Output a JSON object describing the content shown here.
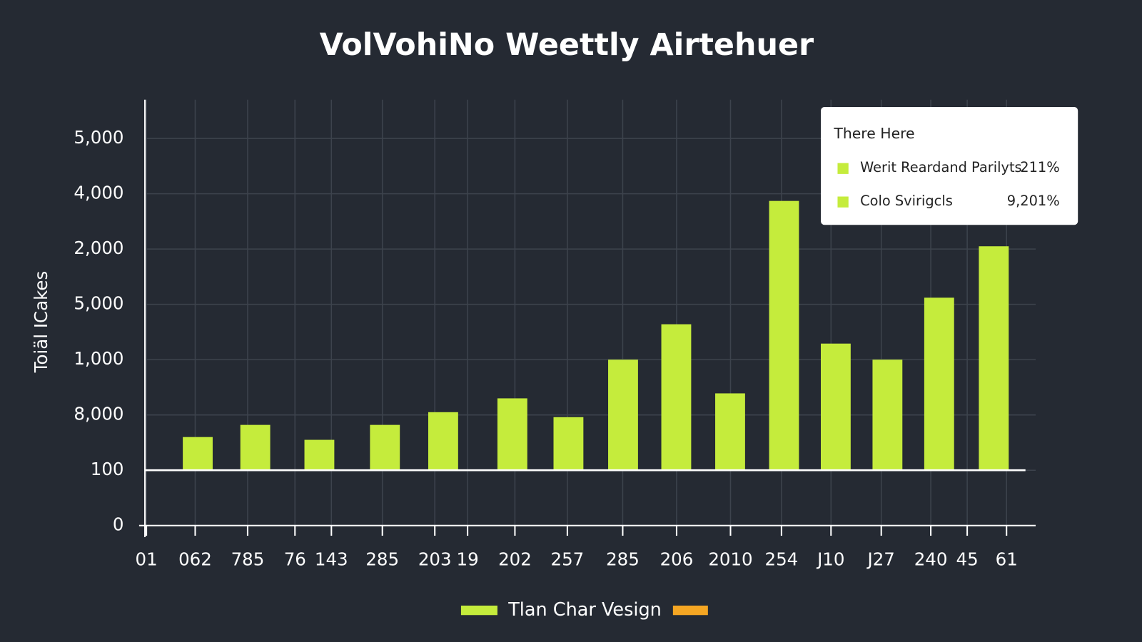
{
  "chart_data": {
    "type": "bar",
    "title": "VolVohiNo Weettly Airtehuer",
    "y_axis_label": "Toiäl ICakes",
    "categories": [
      "01",
      "062",
      "785",
      "76",
      "143",
      "285",
      "203",
      "19",
      "202",
      "257",
      "285",
      "206",
      "2010",
      "254",
      "J10",
      "J27",
      "240",
      "45",
      "61"
    ],
    "values": [
      null,
      1.6,
      1.82,
      null,
      1.55,
      1.82,
      2.05,
      null,
      2.3,
      1.96,
      3.0,
      3.64,
      2.39,
      5.87,
      3.29,
      3.0,
      4.12,
      null,
      5.05
    ],
    "color": "#c5ec3c",
    "baseline": 1,
    "ylim": [
      0,
      7.7
    ],
    "yticks": [
      {
        "value": 0,
        "label": "0"
      },
      {
        "value": 1,
        "label": "100"
      },
      {
        "value": 2,
        "label": "8,000"
      },
      {
        "value": 3,
        "label": "1,000"
      },
      {
        "value": 4,
        "label": "5,000"
      },
      {
        "value": 5,
        "label": "2,000"
      },
      {
        "value": 6,
        "label": "4,000"
      },
      {
        "value": 7,
        "label": "5,000"
      }
    ],
    "grid": true,
    "legend_box": {
      "title": "There Here",
      "entries": [
        {
          "name": "Werit Reardand Parilyts",
          "label": "211%",
          "color": "#c5ec3c"
        },
        {
          "name": "Colo Svirigcls",
          "label": "9,201%",
          "color": "#c5ec3c"
        }
      ]
    },
    "bottom_legend": {
      "name": "Tlan Char Vesign",
      "color": "#c5ec3c",
      "accent_color": "#f5a623"
    }
  }
}
